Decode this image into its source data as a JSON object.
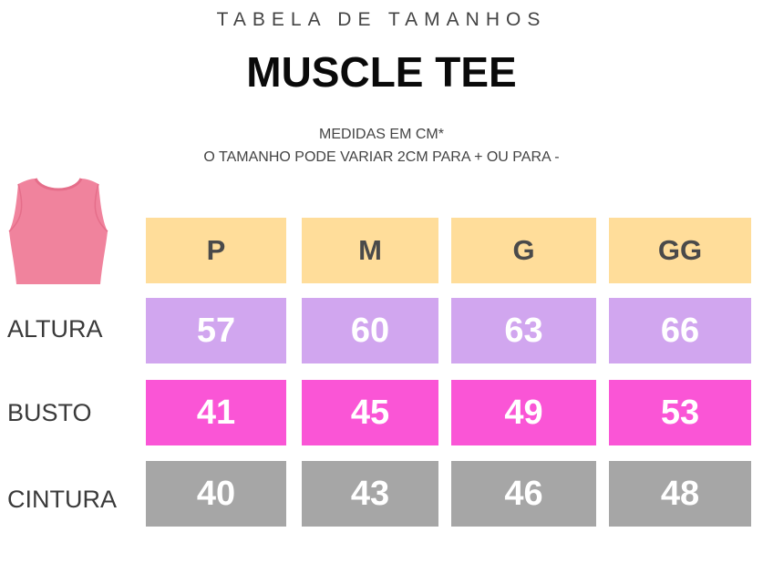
{
  "header": {
    "subtitle": "TABELA DE TAMANHOS",
    "title": "MUSCLE TEE"
  },
  "notes": {
    "line1": "MEDIDAS EM CM*",
    "line2": "O TAMANHO PODE VARIAR 2CM PARA + OU PARA -"
  },
  "illustration": {
    "icon": "crop-top-icon",
    "color": "#f0839d"
  },
  "table": {
    "sizes": [
      "P",
      "M",
      "G",
      "GG"
    ],
    "rows": [
      {
        "label": "ALTURA",
        "values": [
          "57",
          "60",
          "63",
          "66"
        ],
        "color": "#d1a6ef"
      },
      {
        "label": "BUSTO",
        "values": [
          "41",
          "45",
          "49",
          "53"
        ],
        "color": "#fa55d6"
      },
      {
        "label": "CINTURA",
        "values": [
          "40",
          "43",
          "46",
          "48"
        ],
        "color": "#a6a6a6"
      }
    ],
    "header_color": "#ffdd9a"
  }
}
